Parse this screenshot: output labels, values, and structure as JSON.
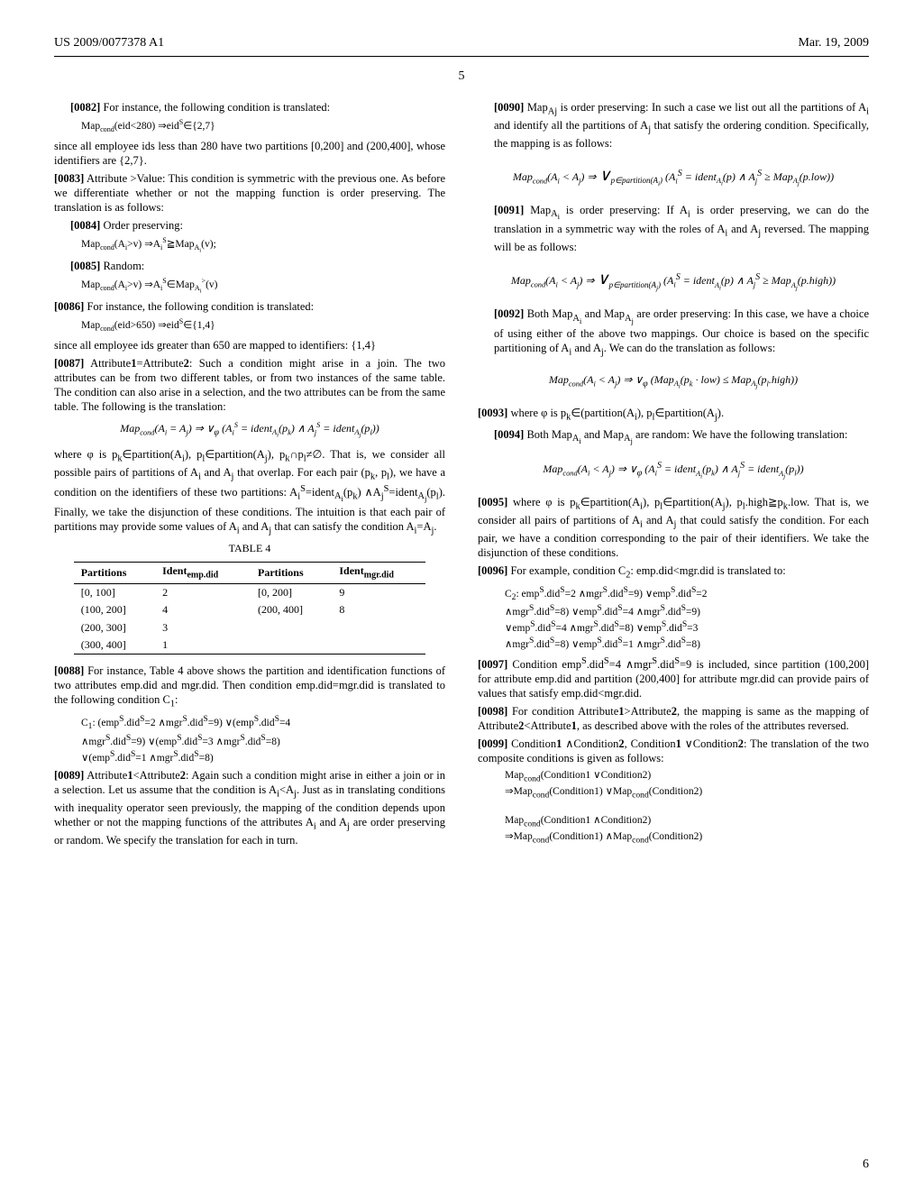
{
  "header": {
    "left": "US 2009/0077378 A1",
    "right": "Mar. 19, 2009"
  },
  "page_number": "5",
  "sheet_number": "6",
  "left_column": {
    "p0082_label": "[0082]",
    "p0082_text": "For instance, the following condition is translated:",
    "p0082_formula": "Map_cond(eid<280) ⇒ eid^S∈{2,7}",
    "p0082_after": "since all employee ids less than 280 have two partitions [0,200] and (200,400], whose identifiers are {2,7}.",
    "p0083_label": "[0083]",
    "p0083_text": "Attribute >Value: This condition is symmetric with the previous one. As before we differentiate whether or not the mapping function is order preserving. The translation is as follows:",
    "p0084_label": "[0084]",
    "p0084_text": "Order preserving:",
    "p0084_formula": "Map_cond(A_i>v) ⇒ A_i^S ≧ Map_A_i(v);",
    "p0085_label": "[0085]",
    "p0085_text": "Random:",
    "p0085_formula": "Map_cond(A_i>v) ⇒ A_i^S∈Map_A_i^>(v)",
    "p0086_label": "[0086]",
    "p0086_text": "For instance, the following condition is translated:",
    "p0086_formula": "Map_cond(eid>650) ⇒ eid^S∈{1,4}",
    "p0086_after": "since all employee ids greater than 650 are mapped to identifiers: {1,4}",
    "p0087_label": "[0087]",
    "p0087_text": "Attribute1=Attribute2: Such a condition might arise in a join. The two attributes can be from two different tables, or from two instances of the same table. The condition can also arise in a selection, and the two attributes can be from the same table. The following is the translation:",
    "p0087_formula": "Map_cond(A_i = A_j) ⇒ ∨_φ (A_i^S = ident_A_i(p_k) ∧ A_j^S = ident_A_j(p_l))",
    "p0087_after": "where φ is p_k∈partition(A_i), p_l∈partition(A_j), p_k∩p_l≠∅. That is, we consider all possible pairs of partitions of A_i and A_j that overlap. For each pair (p_k, p_l), we have a condition on the identifiers of these two partitions: A_i^S=ident_A_i(p_k) ∧A_j^S=ident_A_j(p_l). Finally, we take the disjunction of these conditions. The intuition is that each pair of partitions may provide some values of A_i and A_j that can satisfy the condition A_i=A_j.",
    "table4": {
      "caption": "TABLE 4",
      "columns": [
        "Partitions",
        "Ident_emp.did",
        "Partitions",
        "Ident_mgr.did"
      ],
      "rows": [
        [
          "[0, 100]",
          "2",
          "[0, 200]",
          "9"
        ],
        [
          "(100, 200]",
          "4",
          "(200, 400]",
          "8"
        ],
        [
          "(200, 300]",
          "3",
          "",
          ""
        ],
        [
          "(300, 400]",
          "1",
          "",
          ""
        ]
      ]
    },
    "p0088_label": "[0088]",
    "p0088_text": "For instance, Table 4 above shows the partition and identification functions of two attributes emp.did and mgr.did. Then condition emp.did=mgr.did is translated to the following condition C_1:",
    "p0088_formula_l1": "C_1: (emp^S.did^S=2 ∧mgr^S.did^S=9) ∨(emp^S.did^S=4",
    "p0088_formula_l2": "∧mgr^S.did^S=9) ∨(emp^S.did^S=3 ∧mgr^S.did^S=8)",
    "p0088_formula_l3": "∨(emp^S.did^S=1 ∧mgr^S.did^S=8)",
    "p0089_label": "[0089]",
    "p0089_text": "Attribute1<Attribute2: Again such a condition might arise in either a join or in a selection. Let us assume that the condition is A_i<A_j. Just as in translating conditions with inequality operator seen previously, the mapping of the condition depends upon whether or not the mapping functions of the attributes A_i and A_j are order preserving or random. We specify the translation for each in turn."
  },
  "right_column": {
    "p0090_label": "[0090]",
    "p0090_text": "Map_Aj is order preserving: In such a case we list out all the partitions of A_i and identify all the partitions of A_j that satisfy the ordering condition. Specifically, the mapping is as follows:",
    "p0090_formula": "Map_cond(A_i < A_j) ⇒ ∨_{p∈partition(A_i)} (A_i^S = ident_A_i(p) ∧ A_j^S ≥ Map_A_j(p.low))",
    "p0091_label": "[0091]",
    "p0091_text": "Map_A_i is order preserving: If A_i is order preserving, we can do the translation in a symmetric way with the roles of A_i and A_j reversed. The mapping will be as follows:",
    "p0091_formula": "Map_cond(A_i < A_j) ⇒ ∨_{p∈partition(A_j)} (A_i^S = ident_A_i(p) ∧ A_j^S ≥ Map_A_j(p.high))",
    "p0092_label": "[0092]",
    "p0092_text": "Both Map_A_i and Map_A_j are order preserving: In this case, we have a choice of using either of the above two mappings. Our choice is based on the specific partitioning of A_i and A_j. We can do the translation as follows:",
    "p0092_formula": "Map_cond(A_i < A_j) ⇒ ∨_φ (Map_A_i(p_k · low) ≤ Map_A_j(p_l.high))",
    "p0093_label": "[0093]",
    "p0093_text": "where φ is p_k∈(partition(A_i), p_l∈partition(A_j).",
    "p0094_label": "[0094]",
    "p0094_text": "Both Map_A_i and Map_A_j are random: We have the following translation:",
    "p0094_formula": "Map_cond(A_i < A_j) ⇒ ∨_φ (A_i^S = ident_A_i(p_k) ∧ A_j^S = ident_A_j(p_l))",
    "p0095_label": "[0095]",
    "p0095_text": "where φ is p_k∈partition(A_i), p_l∈partition(A_j), p_l.high≧p_k.low. That is, we consider all pairs of partitions of A_i and A_j that could satisfy the condition. For each pair, we have a condition corresponding to the pair of their identifiers. We take the disjunction of these conditions.",
    "p0096_label": "[0096]",
    "p0096_text": "For example, condition C_2: emp.did<mgr.did is translated to:",
    "p0096_formula_l1": "C_2: emp^S.did^S=2 ∧mgr^S.did^S=9) ∨emp^S.did^S=2",
    "p0096_formula_l2": "∧mgr^S.did^S=8) ∨emp^S.did^S=4 ∧mgr^S.did^S=9)",
    "p0096_formula_l3": "∨emp^S.did^S=4 ∧mgr^S.did^S=8) ∨emp^S.did^S=3",
    "p0096_formula_l4": "∧mgr^S.did^S=8) ∨emp^S.did^S=1 ∧mgr^S.did^S=8)",
    "p0097_label": "[0097]",
    "p0097_text": "Condition emp^S.did^S=4 ∧mgr^S.did^S=9 is included, since partition (100,200] for attribute emp.did and partition (200,400] for attribute mgr.did can provide pairs of values that satisfy emp.did<mgr.did.",
    "p0098_label": "[0098]",
    "p0098_text": "For condition Attribute1>Attribute2, the mapping is same as the mapping of Attribute2<Attribute1, as described above with the roles of the attributes reversed.",
    "p0099_label": "[0099]",
    "p0099_text": "Condition1 ∧Condition2, Condition1 ∨Condition2: The translation of the two composite conditions is given as follows:",
    "p0099_formula_l1": "Map_cond(Condition1 ∨Condition2)",
    "p0099_formula_l2": "⇒Map_cond(Condition1) ∨Map_cond(Condition2)",
    "p0099_formula_l3": "Map_cond(Condition1 ∧Condition2)",
    "p0099_formula_l4": "⇒Map_cond(Condition1) ∧Map_cond(Condition2)"
  }
}
